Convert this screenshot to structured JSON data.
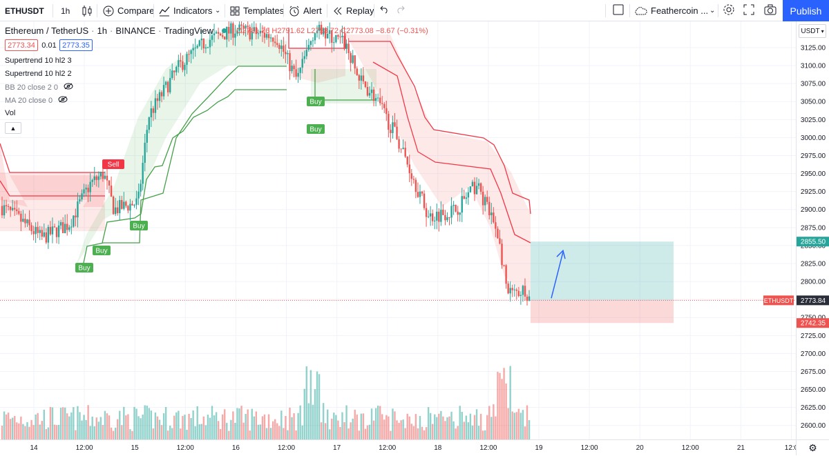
{
  "toolbar": {
    "symbol": "ETHUSDT",
    "interval": "1h",
    "compare_label": "Compare",
    "indicators_label": "Indicators",
    "templates_label": "Templates",
    "alert_label": "Alert",
    "replay_label": "Replay",
    "layout_name": "Feathercoin ...",
    "publish_label": "Publish"
  },
  "legend": {
    "pair": "Ethereum / TetherUS",
    "interval": "1h",
    "exchange": "BINANCE",
    "brand": "TradingView",
    "ohlc": "O2781.76 H2791.62 L2753.72 C2773.08 −8.67 (−0.31%)",
    "bid": "2773.34",
    "spread": "0.01",
    "ask": "2773.35"
  },
  "indicators": [
    {
      "label": "Supertrend 10 hl2 3"
    },
    {
      "label": "Supertrend 10 hl2 2"
    },
    {
      "label": "BB 20 close 2 0"
    },
    {
      "label": "MA 20 close 0"
    },
    {
      "label": "Vol"
    }
  ],
  "price_axis": {
    "currency": "USDT",
    "ticks": [
      "3125.00",
      "3100.00",
      "3075.00",
      "3050.00",
      "3025.00",
      "3000.00",
      "2975.00",
      "2950.00",
      "2925.00",
      "2900.00",
      "2875.00",
      "2850.00",
      "2825.00",
      "2800.00",
      "2775.00",
      "2750.00",
      "2725.00",
      "2700.00",
      "2675.00",
      "2650.00",
      "2625.00",
      "2600.00"
    ],
    "target_label": "2855.50",
    "current_label": "2773.84",
    "stop_label": "2742.35",
    "symbol_tag": "ETHUSDT"
  },
  "time_axis": {
    "labels": [
      "14",
      "12:00",
      "15",
      "12:00",
      "16",
      "12:00",
      "17",
      "12:00",
      "18",
      "12:00",
      "19",
      "12:00",
      "20",
      "12:00",
      "21",
      "12:0"
    ]
  },
  "signals": {
    "buy": "Buy",
    "sell": "Sell"
  },
  "colors": {
    "up": "#26a69a",
    "down": "#ef5350",
    "buy": "#4caf50",
    "sell": "#f23645",
    "accent": "#2962ff"
  },
  "chart_data": {
    "type": "candlestick",
    "price_min": 2590,
    "price_max": 3138,
    "bar_interval": "1h",
    "position": {
      "type": "long",
      "entry": 2773.84,
      "target": 2855.5,
      "stop": 2742.35
    }
  }
}
